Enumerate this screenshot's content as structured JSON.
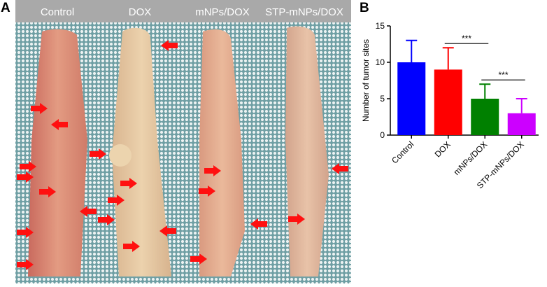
{
  "panels": {
    "a": "A",
    "b": "B"
  },
  "photo": {
    "columns": [
      "Control",
      "DOX",
      "mNPs/DOX",
      "STP-mNPs/DOX"
    ]
  },
  "chart_data": {
    "type": "bar",
    "ylabel": "Number of tumor sites",
    "categories": [
      "Control",
      "DOX",
      "mNPs/DOX",
      "STP-mNPs/DOX"
    ],
    "values": [
      10,
      9,
      5,
      3
    ],
    "errors": [
      3,
      3,
      2,
      2
    ],
    "colors": [
      "#0000ff",
      "#ff0000",
      "#008000",
      "#cc00ff"
    ],
    "ylim": [
      0,
      15
    ],
    "yticks": [
      0,
      5,
      10,
      15
    ],
    "annotations": [
      "***",
      "***"
    ]
  }
}
